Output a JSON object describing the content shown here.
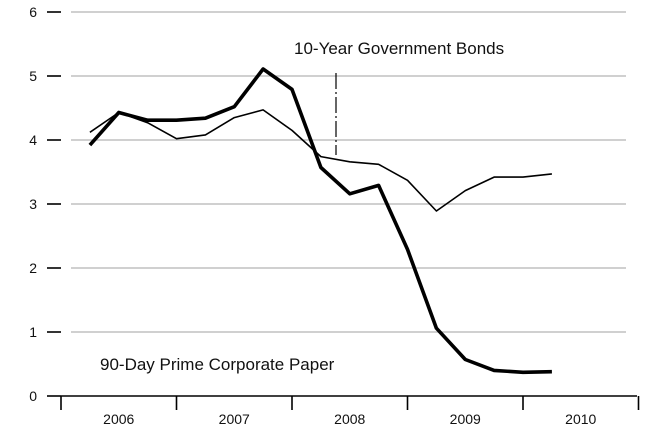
{
  "chart_data": {
    "type": "line",
    "title": "",
    "xlabel": "",
    "ylabel": "",
    "ylim": [
      0,
      6
    ],
    "yticks": [
      "0",
      "1",
      "2",
      "3",
      "4",
      "5",
      "6"
    ],
    "x_categories": [
      "2006",
      "2007",
      "2008",
      "2009",
      "2010"
    ],
    "grid": "horizontal",
    "series": [
      {
        "name": "10-Year Government Bonds",
        "style": "thin",
        "x": [
          2006.0,
          2006.25,
          2006.5,
          2006.75,
          2007.0,
          2007.25,
          2007.5,
          2007.75,
          2008.0,
          2008.25,
          2008.5,
          2008.75,
          2009.0,
          2009.25,
          2009.5,
          2009.75,
          2010.0
        ],
        "values": [
          4.12,
          4.43,
          4.27,
          4.02,
          4.08,
          4.35,
          4.47,
          4.15,
          3.74,
          3.66,
          3.62,
          3.37,
          2.89,
          3.21,
          3.42,
          3.42,
          3.47
        ]
      },
      {
        "name": "90-Day Prime Corporate Paper",
        "style": "thick",
        "x": [
          2006.0,
          2006.25,
          2006.5,
          2006.75,
          2007.0,
          2007.25,
          2007.5,
          2007.75,
          2008.0,
          2008.25,
          2008.5,
          2008.75,
          2009.0,
          2009.25,
          2009.5,
          2009.75,
          2010.0
        ],
        "values": [
          3.92,
          4.43,
          4.31,
          4.31,
          4.34,
          4.52,
          5.11,
          4.79,
          3.57,
          3.16,
          3.29,
          2.29,
          1.06,
          0.57,
          0.4,
          0.37,
          0.38
        ]
      }
    ],
    "annotations": [
      {
        "text": "10-Year Government Bonds"
      },
      {
        "text": "90-Day Prime Corporate Paper"
      }
    ]
  }
}
